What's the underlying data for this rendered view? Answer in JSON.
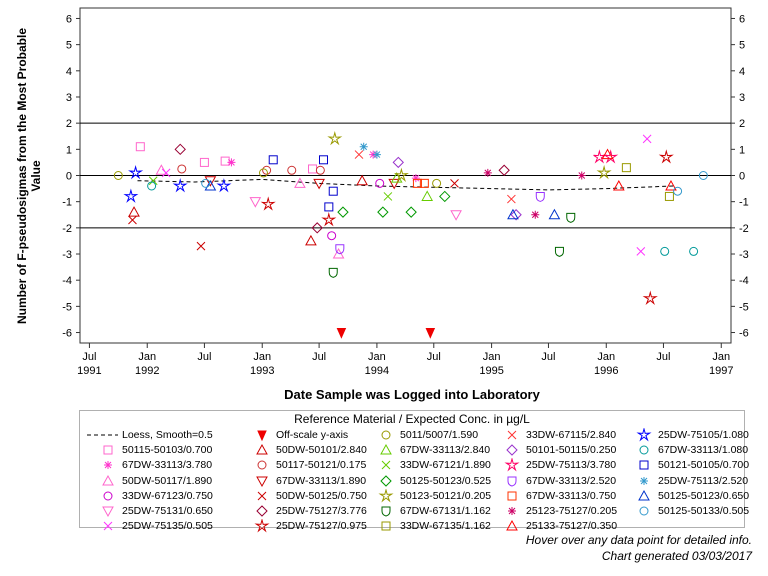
{
  "chart_data": {
    "type": "scatter",
    "title": "",
    "ylabel_line1": "Number of F-pseudosigmas from the Most Probable",
    "ylabel_line2": "Value",
    "xlabel": "Date Sample was Logged into Laboratory",
    "ylim": [
      -6.4,
      6.4
    ],
    "y_ticks": [
      "6",
      "5",
      "4",
      "3",
      "2",
      "1",
      "0",
      "-1",
      "-2",
      "-3",
      "-4",
      "-5",
      "-6"
    ],
    "x_ticks": [
      {
        "top": "Jul",
        "bottom": "1991",
        "date": "1991-07"
      },
      {
        "top": "Jan",
        "bottom": "1992",
        "date": "1992-01"
      },
      {
        "top": "Jul",
        "bottom": "",
        "date": "1992-07"
      },
      {
        "top": "Jan",
        "bottom": "1993",
        "date": "1993-01"
      },
      {
        "top": "Jul",
        "bottom": "",
        "date": "1993-07"
      },
      {
        "top": "Jan",
        "bottom": "1994",
        "date": "1994-01"
      },
      {
        "top": "Jul",
        "bottom": "",
        "date": "1994-07"
      },
      {
        "top": "Jan",
        "bottom": "1995",
        "date": "1995-01"
      },
      {
        "top": "Jul",
        "bottom": "",
        "date": "1995-07"
      },
      {
        "top": "Jan",
        "bottom": "1996",
        "date": "1996-01"
      },
      {
        "top": "Jul",
        "bottom": "",
        "date": "1996-07"
      },
      {
        "top": "Jan",
        "bottom": "1997",
        "date": "1997-01"
      }
    ],
    "reference_lines_y": [
      2,
      0,
      -2
    ],
    "loess": {
      "name": "Loess, Smooth=0.5",
      "points": [
        {
          "x": "1991-12-01",
          "y": -0.2
        },
        {
          "x": "1992-06-01",
          "y": -0.25
        },
        {
          "x": "1993-01-01",
          "y": -0.15
        },
        {
          "x": "1993-07-01",
          "y": -0.3
        },
        {
          "x": "1994-01-01",
          "y": -0.4
        },
        {
          "x": "1994-07-01",
          "y": -0.45
        },
        {
          "x": "1995-01-01",
          "y": -0.5
        },
        {
          "x": "1995-07-01",
          "y": -0.55
        },
        {
          "x": "1996-01-01",
          "y": -0.5
        },
        {
          "x": "1996-08-01",
          "y": -0.4
        }
      ]
    },
    "offscale": {
      "name": "Off-scale y-axis",
      "points": [
        {
          "x": "1993-09-10",
          "y": -6
        },
        {
          "x": "1994-06-20",
          "y": -6
        }
      ]
    },
    "legend_title": "Reference Material / Expected Conc. in µg/L",
    "series": [
      {
        "name": "50115-50103/0.700",
        "color": "#ff66cc",
        "marker": "square",
        "points": [
          {
            "x": "1991-12-10",
            "y": 1.1
          },
          {
            "x": "1992-07-01",
            "y": 0.5
          },
          {
            "x": "1992-09-05",
            "y": 0.55
          },
          {
            "x": "1993-06-10",
            "y": 0.25
          }
        ]
      },
      {
        "name": "67DW-33113/3.780",
        "color": "#ff33cc",
        "marker": "star8",
        "points": [
          {
            "x": "1992-09-25",
            "y": 0.5
          },
          {
            "x": "1993-12-20",
            "y": 0.8
          },
          {
            "x": "1994-05-05",
            "y": -0.1
          }
        ]
      },
      {
        "name": "50DW-50117/1.890",
        "color": "#ff66cc",
        "marker": "triangle",
        "points": [
          {
            "x": "1992-02-15",
            "y": 0.2
          },
          {
            "x": "1993-05-01",
            "y": -0.3
          },
          {
            "x": "1993-09-01",
            "y": -3
          }
        ]
      },
      {
        "name": "33DW-67123/0.750",
        "color": "#cc00cc",
        "marker": "circle",
        "points": [
          {
            "x": "1993-08-10",
            "y": -2.3
          },
          {
            "x": "1994-01-10",
            "y": -0.3
          }
        ]
      },
      {
        "name": "25DW-75131/0.650",
        "color": "#ff66cc",
        "marker": "triangle-down",
        "points": [
          {
            "x": "1992-12-10",
            "y": -1
          },
          {
            "x": "1994-09-10",
            "y": -1.5
          }
        ]
      },
      {
        "name": "25DW-75135/0.505",
        "color": "#ff33ff",
        "marker": "x",
        "points": [
          {
            "x": "1992-03-01",
            "y": 0.1
          },
          {
            "x": "1996-05-10",
            "y": 1.4
          },
          {
            "x": "1996-04-20",
            "y": -2.9
          }
        ]
      },
      {
        "name": "50DW-50101/2.840",
        "color": "#cc0000",
        "marker": "triangle",
        "points": [
          {
            "x": "1991-11-20",
            "y": -1.4
          },
          {
            "x": "1993-06-05",
            "y": -2.5
          },
          {
            "x": "1993-11-15",
            "y": -0.2
          }
        ]
      },
      {
        "name": "50117-50121/0.175",
        "color": "#cc3333",
        "marker": "circle",
        "points": [
          {
            "x": "1992-04-20",
            "y": 0.25
          },
          {
            "x": "1993-01-15",
            "y": 0.2
          },
          {
            "x": "1993-04-05",
            "y": 0.2
          },
          {
            "x": "1993-07-05",
            "y": 0.2
          }
        ]
      },
      {
        "name": "67DW-33113/1.890",
        "color": "#cc0000",
        "marker": "triangle-down",
        "points": [
          {
            "x": "1992-07-20",
            "y": -0.2
          },
          {
            "x": "1993-07-01",
            "y": -0.3
          },
          {
            "x": "1994-02-25",
            "y": -0.3
          }
        ]
      },
      {
        "name": "50DW-50125/0.750",
        "color": "#cc0000",
        "marker": "x",
        "points": [
          {
            "x": "1991-11-15",
            "y": -1.7
          },
          {
            "x": "1992-06-20",
            "y": -2.7
          },
          {
            "x": "1994-09-05",
            "y": -0.3
          }
        ]
      },
      {
        "name": "25DW-75127/3.776",
        "color": "#990033",
        "marker": "diamond",
        "points": [
          {
            "x": "1992-04-15",
            "y": 1
          },
          {
            "x": "1993-06-25",
            "y": -2
          },
          {
            "x": "1995-02-10",
            "y": 0.2
          }
        ]
      },
      {
        "name": "25DW-75127/0.975",
        "color": "#cc0000",
        "marker": "star5",
        "points": [
          {
            "x": "1993-01-20",
            "y": -1.1
          },
          {
            "x": "1993-08-01",
            "y": -1.7
          },
          {
            "x": "1996-05-20",
            "y": -4.7
          },
          {
            "x": "1996-07-10",
            "y": 0.7
          }
        ]
      },
      {
        "name": "5011/5007/1.590",
        "color": "#999900",
        "marker": "circle",
        "points": [
          {
            "x": "1991-10-01",
            "y": 0
          },
          {
            "x": "1993-01-05",
            "y": 0.1
          },
          {
            "x": "1994-07-10",
            "y": -0.3
          }
        ]
      },
      {
        "name": "67DW-33113/2.840",
        "color": "#66cc00",
        "marker": "triangle",
        "points": [
          {
            "x": "1994-03-05",
            "y": -0.1
          },
          {
            "x": "1994-06-10",
            "y": -0.8
          }
        ]
      },
      {
        "name": "33DW-67121/1.890",
        "color": "#66cc00",
        "marker": "x",
        "points": [
          {
            "x": "1992-01-20",
            "y": -0.2
          },
          {
            "x": "1994-02-05",
            "y": -0.8
          }
        ]
      },
      {
        "name": "50125-50123/0.525",
        "color": "#009900",
        "marker": "diamond",
        "points": [
          {
            "x": "1993-09-15",
            "y": -1.4
          },
          {
            "x": "1994-01-20",
            "y": -1.4
          },
          {
            "x": "1994-04-20",
            "y": -1.4
          },
          {
            "x": "1994-08-05",
            "y": -0.8
          }
        ]
      },
      {
        "name": "50123-50121/0.205",
        "color": "#999900",
        "marker": "star5",
        "points": [
          {
            "x": "1993-08-20",
            "y": 1.4
          },
          {
            "x": "1994-03-20",
            "y": 0
          },
          {
            "x": "1995-12-25",
            "y": 0.1
          }
        ]
      },
      {
        "name": "67DW-67131/1.162",
        "color": "#006600",
        "marker": "shield",
        "points": [
          {
            "x": "1993-08-15",
            "y": -3.7
          },
          {
            "x": "1995-08-05",
            "y": -2.9
          },
          {
            "x": "1995-09-10",
            "y": -1.6
          }
        ]
      },
      {
        "name": "33DW-67135/1.162",
        "color": "#999900",
        "marker": "square",
        "points": [
          {
            "x": "1996-03-05",
            "y": 0.3
          },
          {
            "x": "1996-07-20",
            "y": -0.8
          }
        ]
      },
      {
        "name": "33DW-67115/2.840",
        "color": "#ff3333",
        "marker": "x",
        "points": [
          {
            "x": "1993-11-05",
            "y": 0.8
          },
          {
            "x": "1995-03-05",
            "y": -0.9
          }
        ]
      },
      {
        "name": "50101-50115/0.250",
        "color": "#9933cc",
        "marker": "diamond",
        "points": [
          {
            "x": "1994-03-10",
            "y": 0.5
          },
          {
            "x": "1995-03-20",
            "y": -1.5
          }
        ]
      },
      {
        "name": "25DW-75113/3.780",
        "color": "#ff0066",
        "marker": "star5",
        "points": [
          {
            "x": "1995-12-10",
            "y": 0.7
          },
          {
            "x": "1996-01-15",
            "y": 0.7
          }
        ]
      },
      {
        "name": "67DW-33113/2.520",
        "color": "#9933ff",
        "marker": "shield",
        "points": [
          {
            "x": "1993-09-05",
            "y": -2.8
          },
          {
            "x": "1995-06-05",
            "y": -0.8
          }
        ]
      },
      {
        "name": "67DW-33113/0.750",
        "color": "#ff3300",
        "marker": "square",
        "points": [
          {
            "x": "1994-05-10",
            "y": -0.3
          },
          {
            "x": "1994-06-01",
            "y": -0.3
          }
        ]
      },
      {
        "name": "25123-75127/0.205",
        "color": "#cc0066",
        "marker": "star8",
        "points": [
          {
            "x": "1994-12-20",
            "y": 0.1
          },
          {
            "x": "1995-10-15",
            "y": 0
          },
          {
            "x": "1995-05-20",
            "y": -1.5
          }
        ]
      },
      {
        "name": "25133-75127/0.350",
        "color": "#ff0000",
        "marker": "triangle",
        "points": [
          {
            "x": "1996-01-05",
            "y": 0.8
          },
          {
            "x": "1996-02-10",
            "y": -0.4
          },
          {
            "x": "1996-07-25",
            "y": -0.4
          }
        ]
      },
      {
        "name": "25DW-75105/1.080",
        "color": "#0000ff",
        "marker": "star5",
        "points": [
          {
            "x": "1991-11-25",
            "y": 0.1
          },
          {
            "x": "1991-11-10",
            "y": -0.8
          },
          {
            "x": "1992-04-15",
            "y": -0.4
          },
          {
            "x": "1992-09-01",
            "y": -0.4
          }
        ]
      },
      {
        "name": "67DW-33113/1.080",
        "color": "#009999",
        "marker": "circle",
        "points": [
          {
            "x": "1992-01-15",
            "y": -0.4
          },
          {
            "x": "1996-07-05",
            "y": -2.9
          },
          {
            "x": "1996-10-05",
            "y": -2.9
          }
        ]
      },
      {
        "name": "50121-50105/0.700",
        "color": "#0000cc",
        "marker": "square",
        "points": [
          {
            "x": "1993-02-05",
            "y": 0.6
          },
          {
            "x": "1993-07-15",
            "y": 0.6
          },
          {
            "x": "1993-08-15",
            "y": -0.6
          },
          {
            "x": "1993-08-01",
            "y": -1.2
          }
        ]
      },
      {
        "name": "25DW-75113/2.520",
        "color": "#3399cc",
        "marker": "star8",
        "points": [
          {
            "x": "1993-11-20",
            "y": 1.1
          },
          {
            "x": "1994-01-01",
            "y": 0.8
          }
        ]
      },
      {
        "name": "50125-50123/0.650",
        "color": "#0033cc",
        "marker": "triangle",
        "points": [
          {
            "x": "1992-07-20",
            "y": -0.4
          },
          {
            "x": "1995-03-10",
            "y": -1.5
          },
          {
            "x": "1995-07-20",
            "y": -1.5
          }
        ]
      },
      {
        "name": "50125-50133/0.505",
        "color": "#3399cc",
        "marker": "circle",
        "points": [
          {
            "x": "1992-07-05",
            "y": -0.3
          },
          {
            "x": "1996-08-15",
            "y": -0.6
          },
          {
            "x": "1996-11-05",
            "y": 0
          }
        ]
      }
    ]
  },
  "footer": {
    "hover_note": "Hover over any data point for detailed info.",
    "generated": "Chart generated 03/03/2017"
  }
}
